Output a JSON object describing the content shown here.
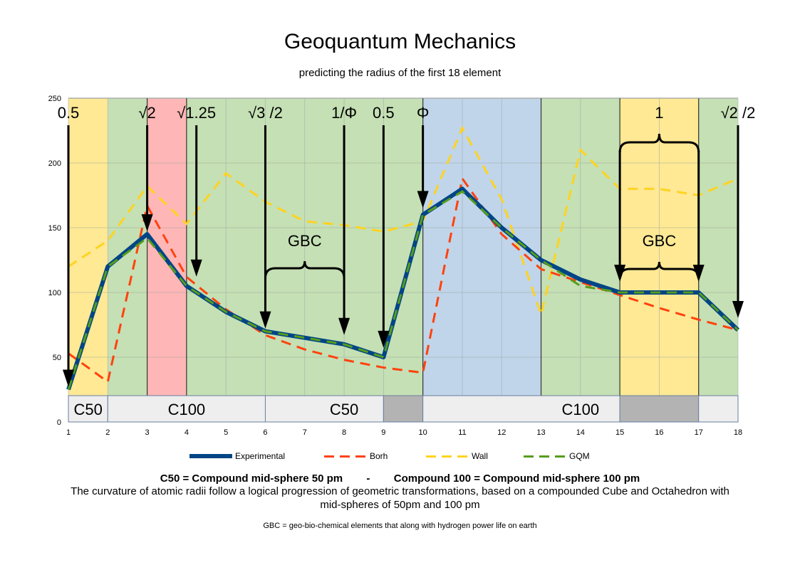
{
  "header": {
    "title": "Geoquantum Mechanics",
    "subtitle": "predicting the radius of the first 18 element"
  },
  "chart_data": {
    "type": "line",
    "title": "Geoquantum Mechanics",
    "subtitle": "predicting the radius of the first 18 element",
    "xlabel": "",
    "ylabel": "",
    "x": [
      1,
      2,
      3,
      4,
      5,
      6,
      7,
      8,
      9,
      10,
      11,
      12,
      13,
      14,
      15,
      16,
      17,
      18
    ],
    "ylim": [
      0,
      250
    ],
    "yticks": [
      0,
      50,
      100,
      150,
      200,
      250
    ],
    "grid": true,
    "legend_position": "bottom",
    "series": [
      {
        "name": "Experimental",
        "color": "#004586",
        "style": "solid",
        "values": [
          25,
          120,
          145,
          105,
          85,
          70,
          65,
          60,
          50,
          160,
          180,
          150,
          125,
          110,
          100,
          100,
          100,
          71
        ]
      },
      {
        "name": "Borh",
        "color": "#ff420e",
        "style": "dashed",
        "values": [
          53,
          31,
          167,
          112,
          87,
          67,
          56,
          48,
          42,
          38,
          188,
          145,
          118,
          108,
          98,
          88,
          79,
          71
        ]
      },
      {
        "name": "Wall",
        "color": "#ffd320",
        "style": "dashed",
        "values": [
          120,
          140,
          182,
          153,
          192,
          170,
          155,
          152,
          147,
          155,
          227,
          172,
          83,
          210,
          180,
          180,
          175,
          188
        ]
      },
      {
        "name": "GQM",
        "color": "#579d1c",
        "style": "dashed",
        "values": [
          25,
          120,
          142,
          105,
          85,
          70,
          65,
          60,
          50,
          160,
          178,
          150,
          125,
          105,
          100,
          100,
          100,
          71
        ]
      }
    ],
    "background_bands": [
      {
        "from": 1,
        "to": 2,
        "color": "#ffe994"
      },
      {
        "from": 2,
        "to": 3,
        "color": "#c5e0b4"
      },
      {
        "from": 3,
        "to": 4,
        "color": "#ffb6b6"
      },
      {
        "from": 4,
        "to": 10,
        "color": "#c5e0b4"
      },
      {
        "from": 10,
        "to": 13,
        "color": "#c0d5ea"
      },
      {
        "from": 13,
        "to": 15,
        "color": "#c5e0b4"
      },
      {
        "from": 15,
        "to": 17,
        "color": "#ffe994"
      },
      {
        "from": 17,
        "to": 18,
        "color": "#c5e0b4"
      }
    ],
    "compound_bar": [
      {
        "from": 1,
        "to": 2,
        "label": "C50",
        "fill": "#eeeeee"
      },
      {
        "from": 2,
        "to": 6,
        "label": "C100",
        "fill": "#eeeeee"
      },
      {
        "from": 6,
        "to": 9,
        "label": "C50",
        "fill": "#eeeeee"
      },
      {
        "from": 9,
        "to": 10,
        "label": "",
        "fill": "#b3b3b3"
      },
      {
        "from": 10,
        "to": 15,
        "label": "C100",
        "fill": "#eeeeee"
      },
      {
        "from": 15,
        "to": 17,
        "label": "",
        "fill": "#b3b3b3"
      },
      {
        "from": 17,
        "to": 18,
        "label": "",
        "fill": "#eeeeee"
      }
    ],
    "annotations": [
      {
        "label": "0.5",
        "x": 1,
        "arrow_to": 25
      },
      {
        "label": "√2",
        "x": 3,
        "arrow_to": 145
      },
      {
        "label": "√1.25",
        "x": 4.25,
        "arrow_to": 110
      },
      {
        "label": "√3 /2",
        "x": 6,
        "arrow_to": 70
      },
      {
        "label": "1/Φ",
        "x": 8,
        "arrow_to": 65
      },
      {
        "label": "0.5",
        "x": 9,
        "arrow_to": 55
      },
      {
        "label": "Φ",
        "x": 10,
        "arrow_to": 163
      },
      {
        "label": "1",
        "x": 16,
        "arrow_to": null
      },
      {
        "label": "√2 /2",
        "x": 18,
        "arrow_to": 78
      }
    ],
    "braces": [
      {
        "label": "GBC",
        "from": 6,
        "to": 8
      },
      {
        "label": "GBC",
        "from": 15,
        "to": 17
      }
    ]
  },
  "legend": {
    "items": [
      {
        "label": "Experimental",
        "color": "#004586"
      },
      {
        "label": "Borh",
        "color": "#ff420e"
      },
      {
        "label": "Wall",
        "color": "#ffd320"
      },
      {
        "label": "GQM",
        "color": "#579d1c"
      }
    ]
  },
  "notes": {
    "definition": "C50 = Compound mid-sphere 50 pm        -        Compound 100 = Compound mid-sphere 100 pm",
    "description": "The curvature of atomic radii follow a logical progression of geometric transformations, based on a compounded Cube and Octahedron with mid-spheres of 50pm and 100 pm",
    "gbc": "GBC = geo-bio-chemical elements that along with hydrogen power life on earth"
  }
}
